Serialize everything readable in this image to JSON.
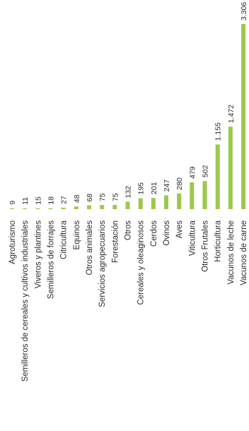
{
  "chart_data": {
    "type": "bar",
    "orientation": "vertical",
    "text_rotation": "-90deg",
    "categories": [
      "Agroturismo",
      "Semilleros de cereales y cultivos industriales",
      "Viveros y plantines",
      "Semilleros de forrajes",
      "Citricultura",
      "Equinos",
      "Otros animales",
      "Servicios agropecuarios",
      "Forestación",
      "Otros",
      "Cereales y oleaginosos",
      "Cerdos",
      "Ovinos",
      "Aves",
      "Viticultura",
      "Otros Frutales",
      "Horticultura",
      "Vacunos de leche",
      "Vacunos de carne"
    ],
    "values": [
      9,
      11,
      15,
      18,
      27,
      48,
      68,
      75,
      75,
      132,
      195,
      201,
      247,
      280,
      479,
      502,
      1155,
      1472,
      3306
    ],
    "value_labels": [
      "9",
      "11",
      "15",
      "18",
      "27",
      "48",
      "68",
      "75",
      "75",
      "132",
      "195",
      "201",
      "247",
      "280",
      "479",
      "502",
      "1.155",
      "1.472",
      "3.306"
    ],
    "title": "",
    "xlabel": "",
    "ylabel": "",
    "ylim": [
      0,
      3306
    ],
    "grid": false,
    "legend": "none",
    "bar_color": "#9bc94b"
  }
}
